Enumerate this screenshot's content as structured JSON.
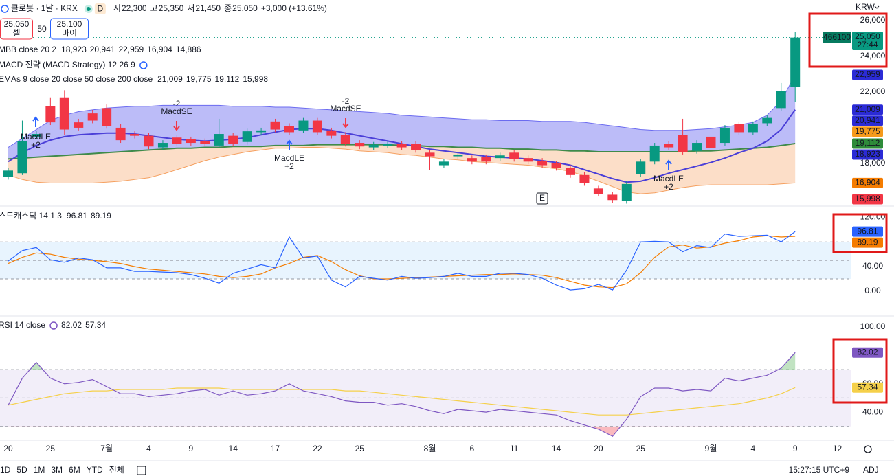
{
  "header": {
    "symbol": "클로봇 · 1날 · KRX",
    "interval_badge": "D",
    "ohlc": [
      {
        "key": "시",
        "value": "22,300"
      },
      {
        "key": "고",
        "value": "25,350"
      },
      {
        "key": "저",
        "value": "21,450"
      },
      {
        "key": "종",
        "value": "25,050"
      }
    ],
    "change": "+3,000 (+13.61%)"
  },
  "order": {
    "sell_price": "25,050",
    "sell": "셀",
    "qty": "50",
    "buy_price": "25,100",
    "buy": "바이"
  },
  "legends": [
    {
      "name": "MBB close 20 2",
      "values": [
        {
          "text": "18,923",
          "color": "#2b2bd6"
        },
        {
          "text": "20,941",
          "color": "#2b2bd6"
        },
        {
          "text": "22,959",
          "color": "#2b2bd6"
        },
        {
          "text": "16,904",
          "color": "#f57c00"
        },
        {
          "text": "14,886",
          "color": "#f57c00"
        }
      ]
    },
    {
      "name": "MACD 전략 (MACD Strategy) 12 26 9",
      "values": []
    },
    {
      "name": "EMAs 9 close 20 close 50 close 200 close",
      "values": [
        {
          "text": "21,009",
          "color": "#2b2bd6"
        },
        {
          "text": "19,775",
          "color": "#f59a1b"
        },
        {
          "text": "19,112",
          "color": "#2e8b3a"
        },
        {
          "text": "15,998",
          "color": "#f23645"
        }
      ]
    },
    {
      "name": "스토캐스틱 14 1 3",
      "values": [
        {
          "text": "96.81",
          "color": "#2962ff"
        },
        {
          "text": "89.19",
          "color": "#f57c00"
        }
      ]
    },
    {
      "name": "RSI 14 close",
      "values": [
        {
          "text": "82.02",
          "color": "#7e57c2"
        },
        {
          "text": "57.34",
          "color": "#e0b800"
        }
      ]
    }
  ],
  "currency": "KRW",
  "last_price_tag": {
    "code": "466100",
    "price": "25,050",
    "countdown": "27:44"
  },
  "chart_data": [
    {
      "type": "candlestick",
      "up_color": "#089981",
      "down_color": "#f23645",
      "open": [
        17250,
        17450,
        19500,
        21200,
        21700,
        20300,
        20800,
        21100,
        20000,
        19650,
        19550,
        18900,
        19450,
        19350,
        19250,
        19000,
        19550,
        19200,
        19750,
        20350,
        20100,
        19850,
        20400,
        19850,
        19600,
        19150,
        18900,
        19000,
        19100,
        19100,
        18600,
        17900,
        18400,
        18300,
        18350,
        18300,
        18600,
        18300,
        18150,
        18000,
        17750,
        17350,
        16600,
        16250,
        15900,
        17400,
        18100,
        19100,
        19600,
        18700,
        19500,
        19150,
        20200,
        19750,
        20250,
        21100,
        22300
      ],
      "high": [
        17750,
        20400,
        19800,
        21700,
        22100,
        20500,
        21000,
        21300,
        20200,
        19800,
        19700,
        19300,
        19600,
        19500,
        19400,
        20500,
        19700,
        19950,
        20000,
        20500,
        20250,
        20550,
        20550,
        20000,
        19750,
        19300,
        19200,
        19250,
        19250,
        19250,
        18750,
        18250,
        18650,
        18450,
        18500,
        18600,
        18750,
        18450,
        18300,
        18150,
        17900,
        17500,
        16750,
        16400,
        17000,
        18250,
        19150,
        19250,
        20500,
        19300,
        19650,
        20150,
        20350,
        20350,
        20700,
        22500,
        25350
      ],
      "low": [
        17100,
        17350,
        19350,
        20150,
        19600,
        19850,
        20250,
        19950,
        19150,
        19400,
        18800,
        18750,
        18950,
        19000,
        18950,
        18850,
        18950,
        19050,
        19600,
        19750,
        19600,
        19700,
        19600,
        19400,
        18950,
        18800,
        18750,
        18850,
        18750,
        18600,
        17650,
        17750,
        18250,
        17950,
        17950,
        18150,
        18100,
        17950,
        17750,
        17600,
        17200,
        16750,
        16150,
        15800,
        15750,
        17250,
        17950,
        18750,
        18500,
        18550,
        18700,
        19000,
        19600,
        19600,
        20100,
        20950,
        21450
      ],
      "close": [
        17600,
        19250,
        19650,
        20300,
        19900,
        20000,
        20400,
        20100,
        19300,
        19550,
        18950,
        19150,
        19100,
        19150,
        19100,
        19650,
        19100,
        19800,
        19850,
        19900,
        19750,
        20400,
        19750,
        19550,
        19100,
        18950,
        19050,
        19100,
        18900,
        18750,
        18400,
        18100,
        18500,
        18100,
        18100,
        18450,
        18250,
        18100,
        17900,
        17750,
        17350,
        16900,
        16300,
        15950,
        16850,
        18100,
        19000,
        18900,
        18650,
        19150,
        18850,
        20000,
        19750,
        20200,
        20550,
        22050,
        25050
      ],
      "series": [
        {
          "color": "#6b6bf0",
          "values": [
            18900,
            19400,
            19900,
            20400,
            20700,
            20900,
            21000,
            21100,
            21150,
            21200,
            21200,
            21250,
            21250,
            21250,
            21250,
            21250,
            21200,
            21200,
            21200,
            21150,
            21150,
            21100,
            21050,
            21000,
            20950,
            20900,
            20850,
            20800,
            20700,
            20650,
            20600,
            20550,
            20500,
            20450,
            20450,
            20400,
            20400,
            20400,
            20350,
            20350,
            20350,
            20300,
            20200,
            20100,
            20000,
            19900,
            19850,
            19850,
            19850,
            19900,
            19950,
            20050,
            20150,
            20300,
            20700,
            21500,
            22959
          ]
        },
        {
          "color": "#f5a060",
          "values": [
            17350,
            17100,
            16950,
            16900,
            16900,
            16900,
            16900,
            16950,
            17000,
            17100,
            17200,
            17400,
            17650,
            17900,
            18150,
            18350,
            18500,
            18650,
            18750,
            18850,
            18850,
            18900,
            18900,
            18850,
            18800,
            18700,
            18650,
            18600,
            18500,
            18450,
            18350,
            18250,
            18200,
            18100,
            18050,
            18000,
            17950,
            17900,
            17800,
            17700,
            17550,
            17300,
            17000,
            16700,
            16400,
            16300,
            16350,
            16500,
            16650,
            16750,
            16800,
            16800,
            16800,
            16800,
            16800,
            16850,
            16904
          ]
        },
        {
          "color": "#4b3fd8",
          "values": [
            18100,
            18600,
            19000,
            19300,
            19500,
            19600,
            19650,
            19700,
            19700,
            19650,
            19550,
            19450,
            19350,
            19300,
            19250,
            19300,
            19350,
            19450,
            19600,
            19750,
            19900,
            19950,
            19950,
            19850,
            19700,
            19550,
            19400,
            19250,
            19100,
            18950,
            18800,
            18700,
            18600,
            18500,
            18400,
            18350,
            18300,
            18250,
            18150,
            18050,
            17900,
            17650,
            17400,
            17150,
            16950,
            17000,
            17200,
            17450,
            17650,
            17850,
            18050,
            18300,
            18600,
            18850,
            19250,
            19900,
            21009
          ]
        },
        {
          "color": "#3f8a4a",
          "values": [
            18250,
            18300,
            18350,
            18400,
            18450,
            18500,
            18550,
            18600,
            18650,
            18700,
            18750,
            18800,
            18850,
            18850,
            18900,
            18900,
            18950,
            18950,
            18950,
            19000,
            19000,
            19000,
            19050,
            19050,
            19050,
            19050,
            19050,
            19050,
            19000,
            19000,
            18950,
            18950,
            18900,
            18900,
            18850,
            18850,
            18800,
            18800,
            18750,
            18750,
            18700,
            18700,
            18650,
            18650,
            18650,
            18650,
            18650,
            18650,
            18650,
            18700,
            18700,
            18750,
            18800,
            18850,
            18900,
            19000,
            19112
          ]
        }
      ],
      "ylim": [
        15690,
        26190
      ],
      "yticks": [
        {
          "value": 26000,
          "label": "26,000"
        },
        {
          "value": 24000,
          "label": "24,000"
        },
        {
          "value": 22000,
          "label": "22,000"
        },
        {
          "value": 18000,
          "label": "18,000"
        }
      ],
      "badges": [
        {
          "value": 22959,
          "label": "22,959",
          "color": "#2b2bd6"
        },
        {
          "value": 21009,
          "label": "21,009",
          "color": "#2b2bd6"
        },
        {
          "value": 20941,
          "label": "20,941",
          "color": "#2b2bd6"
        },
        {
          "value": 19775,
          "label": "19,775",
          "color": "#f59a1b"
        },
        {
          "value": 19112,
          "label": "19,112",
          "color": "#2e8b3a"
        },
        {
          "value": 18923,
          "label": "18,923",
          "color": "#2b2bd6"
        },
        {
          "value": 16904,
          "label": "16,904",
          "color": "#f57c00"
        },
        {
          "value": 15998,
          "label": "15,998",
          "color": "#f23645"
        }
      ],
      "annotations": [
        {
          "signal": "MacdLE",
          "qty": "+2"
        },
        {
          "signal": "MacdSE",
          "qty": "-2"
        },
        {
          "signal": "MacdLE",
          "qty": "+2"
        },
        {
          "signal": "MacdSE",
          "qty": "-2"
        },
        {
          "signal": "MacdLE",
          "qty": "+2"
        }
      ],
      "event_marker": "E"
    },
    {
      "type": "line",
      "series": [
        {
          "color": "#2962ff",
          "values": [
            49,
            66,
            71,
            51,
            47,
            54,
            51,
            38,
            38,
            32,
            32,
            31,
            30,
            27,
            21,
            13,
            29,
            36,
            43,
            38,
            88,
            54,
            57,
            18,
            7,
            24,
            21,
            18,
            24,
            21,
            22,
            24,
            29,
            24,
            24,
            29,
            29,
            27,
            21,
            10,
            2,
            4,
            11,
            2,
            34,
            80,
            81,
            80,
            64,
            74,
            71,
            93,
            89,
            90,
            91,
            80,
            96.81
          ]
        },
        {
          "color": "#f57c00",
          "values": [
            45,
            55,
            62,
            60,
            55,
            52,
            50,
            48,
            45,
            40,
            36,
            34,
            32,
            30,
            28,
            24,
            22,
            24,
            28,
            38,
            45,
            55,
            58,
            48,
            35,
            25,
            20,
            20,
            21,
            22,
            23,
            24,
            25,
            26,
            27,
            27,
            28,
            27,
            26,
            22,
            16,
            10,
            7,
            6,
            12,
            30,
            55,
            72,
            75,
            70,
            72,
            78,
            82,
            88,
            90,
            88,
            89.19
          ]
        }
      ],
      "ylim": [
        -38,
        136
      ],
      "yticks": [
        {
          "value": 120,
          "label": "120.00"
        },
        {
          "value": 40,
          "label": "40.00"
        },
        {
          "value": 0,
          "label": "0.00"
        }
      ],
      "levels": [
        80,
        50,
        20
      ],
      "band": [
        20,
        80
      ],
      "band_color": "#2196f3",
      "badges": [
        {
          "value": 96.81,
          "label": "96.81",
          "color": "#2962ff"
        },
        {
          "value": 89.19,
          "label": "89.19",
          "color": "#f57c00"
        }
      ]
    },
    {
      "type": "line",
      "series": [
        {
          "color": "#7e57c2",
          "values": [
            45,
            64,
            75,
            64,
            60,
            61,
            63,
            58,
            53,
            53,
            51,
            52,
            53,
            55,
            56,
            52,
            55,
            52,
            53,
            55,
            60,
            55,
            53,
            51,
            48,
            47,
            47,
            45,
            46,
            44,
            41,
            39,
            42,
            41,
            40,
            42,
            41,
            40,
            39,
            38,
            34,
            31,
            28,
            23,
            35,
            51,
            57,
            57,
            55,
            56,
            55,
            64,
            62,
            64,
            66,
            71,
            82.02
          ]
        },
        {
          "color": "#f5d04a",
          "values": [
            45,
            47,
            49,
            51,
            53,
            54,
            55,
            55,
            56,
            56,
            56,
            56,
            57,
            57,
            57,
            57,
            56,
            56,
            56,
            56,
            56,
            56,
            56,
            56,
            55,
            55,
            54,
            53,
            52,
            51,
            50,
            49,
            48,
            47,
            46,
            45,
            44,
            43,
            42,
            41,
            40,
            39,
            38,
            38,
            38,
            39,
            40,
            41,
            42,
            43,
            44,
            45,
            46,
            48,
            50,
            53,
            57.34
          ]
        }
      ],
      "ylim": [
        20.7,
        106.8
      ],
      "yticks": [
        {
          "value": 100,
          "label": "100.00"
        },
        {
          "value": 60,
          "label": "60.00"
        },
        {
          "value": 40,
          "label": "40.00"
        }
      ],
      "levels": [
        70,
        50,
        30
      ],
      "band": [
        30,
        70
      ],
      "band_color": "#7e57c2",
      "badges": [
        {
          "value": 82.02,
          "label": "82.02",
          "color": "#7e57c2"
        },
        {
          "value": 57.34,
          "label": "57.34",
          "color": "#f5d04a"
        }
      ]
    }
  ],
  "time_axis": [
    "20",
    null,
    null,
    "25",
    null,
    null,
    null,
    "7월",
    null,
    null,
    "4",
    null,
    null,
    "9",
    null,
    null,
    "14",
    null,
    null,
    "17",
    null,
    null,
    "22",
    null,
    null,
    "25",
    null,
    null,
    null,
    null,
    "8월",
    null,
    null,
    "6",
    null,
    null,
    "11",
    null,
    null,
    "14",
    null,
    null,
    "20",
    null,
    null,
    "25",
    null,
    null,
    null,
    null,
    "9월",
    null,
    null,
    "4",
    null,
    null,
    "9",
    null,
    null,
    "12"
  ],
  "toolbar": {
    "ranges": [
      "1D",
      "5D",
      "1M",
      "3M",
      "6M",
      "YTD",
      "전체"
    ],
    "clock": "15:27:15 UTC+9",
    "adj": "ADJ"
  }
}
